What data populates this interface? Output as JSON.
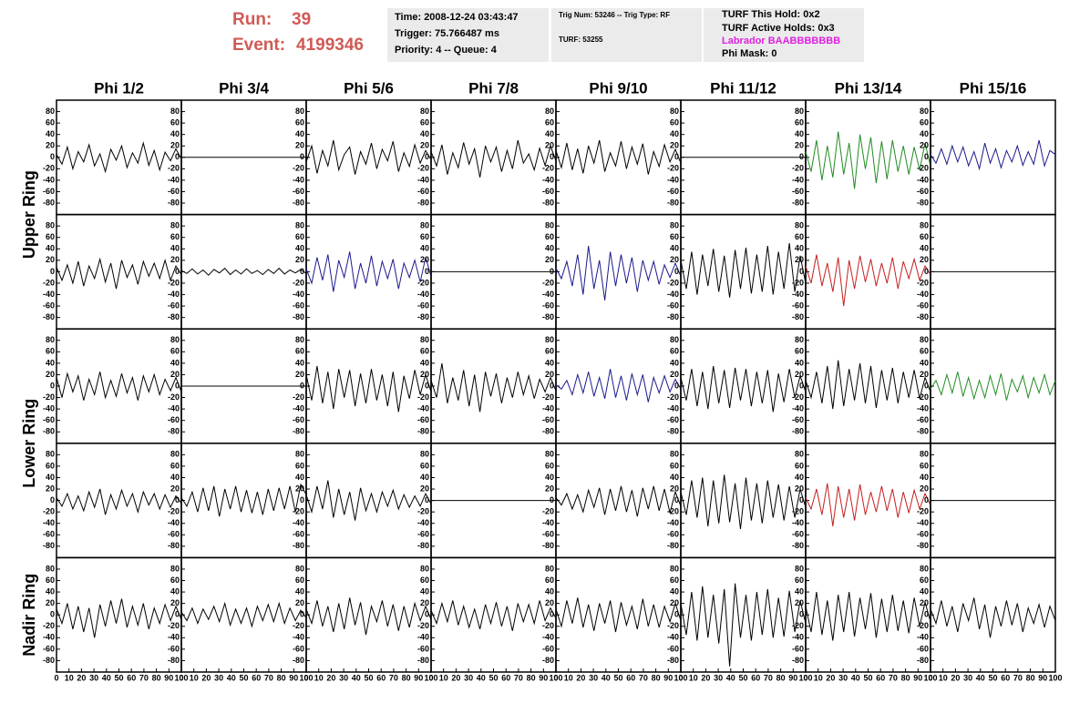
{
  "header": {
    "run_label": "Run:",
    "run": "39",
    "event_label": "Event:",
    "event": "4199346"
  },
  "info": [
    [
      "Time: 2008-12-24 03:43:47",
      "Trigger: 75.766487 ms",
      "Priority: 4 -- Queue: 4"
    ],
    [
      "Trig Num: 53246 -- Trig Type: RF",
      "TURF: 53255"
    ],
    [
      "TURF This Hold: 0x2",
      "TURF Active Holds: 0x3",
      "Labrador BAABBBBBBB",
      "Phi Mask: 0"
    ]
  ],
  "columns": [
    "Phi 1/2",
    "Phi 3/4",
    "Phi 5/6",
    "Phi 7/8",
    "Phi 9/10",
    "Phi 11/12",
    "Phi 13/14",
    "Phi 15/16"
  ],
  "rings": [
    "Upper Ring",
    "Lower Ring",
    "Nadir Ring"
  ],
  "axes": {
    "xlim": [
      0,
      100
    ],
    "ylim": [
      -100,
      100
    ],
    "xticks": [
      0,
      10,
      20,
      30,
      40,
      50,
      60,
      70,
      80,
      90,
      100
    ],
    "yticks": [
      -80,
      -60,
      -40,
      -20,
      0,
      20,
      40,
      60,
      80
    ]
  },
  "panels": [
    [
      {
        "color": "#000000",
        "values": [
          5,
          -12,
          18,
          -20,
          10,
          -8,
          22,
          -15,
          6,
          -25,
          14,
          -5,
          20,
          -18,
          8,
          -10,
          25,
          -14,
          12,
          -22,
          9,
          -6,
          15,
          -3
        ]
      },
      {
        "color": "#000000",
        "values": [
          0,
          0
        ]
      },
      {
        "color": "#000000",
        "values": [
          -8,
          20,
          -28,
          12,
          -15,
          30,
          -22,
          5,
          18,
          -30,
          10,
          -12,
          25,
          -20,
          14,
          -6,
          28,
          -25,
          8,
          -16,
          22,
          -10,
          12,
          -4
        ]
      },
      {
        "color": "#000000",
        "values": [
          10,
          -15,
          22,
          -30,
          8,
          -18,
          26,
          -12,
          15,
          -35,
          20,
          -8,
          18,
          -25,
          12,
          -20,
          30,
          -10,
          6,
          -22,
          16,
          -14,
          20,
          -6
        ]
      },
      {
        "color": "#000000",
        "values": [
          12,
          -18,
          25,
          -22,
          15,
          -28,
          20,
          -10,
          30,
          -25,
          8,
          -15,
          28,
          -20,
          18,
          -12,
          24,
          -30,
          10,
          -16,
          22,
          -8,
          14,
          -10
        ]
      },
      {
        "color": "#000000",
        "values": [
          0,
          0
        ]
      },
      {
        "color": "#228b22",
        "values": [
          10,
          -25,
          30,
          -40,
          20,
          -35,
          45,
          -30,
          25,
          -55,
          40,
          -20,
          35,
          -45,
          28,
          -38,
          30,
          -25,
          20,
          -30,
          18,
          -22,
          25,
          -15
        ]
      },
      {
        "color": "#1a1a8c",
        "values": [
          5,
          -10,
          15,
          -12,
          20,
          -8,
          18,
          -15,
          10,
          -20,
          25,
          -10,
          15,
          -18,
          12,
          -8,
          20,
          -14,
          10,
          -12,
          30,
          -15,
          12,
          5
        ]
      }
    ],
    [
      {
        "color": "#000000",
        "values": [
          8,
          -15,
          12,
          -20,
          18,
          -25,
          10,
          -12,
          22,
          -18,
          15,
          -30,
          20,
          -10,
          12,
          -22,
          18,
          -8,
          15,
          -12,
          20,
          -15,
          10,
          -5
        ]
      },
      {
        "color": "#000000",
        "values": [
          2,
          -3,
          5,
          -4,
          3,
          -6,
          4,
          -2,
          6,
          -5,
          3,
          -4,
          5,
          -3,
          2,
          -5,
          4,
          -3,
          6,
          -4,
          3,
          -2,
          4,
          -3
        ]
      },
      {
        "color": "#1a1a8c",
        "values": [
          5,
          -20,
          25,
          -15,
          30,
          -35,
          20,
          -10,
          35,
          -30,
          15,
          -20,
          28,
          -25,
          18,
          -12,
          22,
          -30,
          15,
          -10,
          20,
          -18,
          25,
          -8
        ]
      },
      {
        "color": "#000000",
        "values": [
          0,
          0
        ]
      },
      {
        "color": "#1a1a8c",
        "values": [
          6,
          -12,
          18,
          -25,
          30,
          -40,
          45,
          -30,
          20,
          -50,
          35,
          -25,
          30,
          -20,
          25,
          -35,
          20,
          -15,
          18,
          -22,
          12,
          -10,
          15,
          -8
        ]
      },
      {
        "color": "#000000",
        "values": [
          20,
          -30,
          35,
          -40,
          30,
          -25,
          40,
          -35,
          28,
          -45,
          38,
          -30,
          42,
          -38,
          30,
          -35,
          45,
          -40,
          35,
          -30,
          50,
          -35,
          28,
          -20
        ]
      },
      {
        "color": "#c41e1e",
        "values": [
          10,
          -20,
          30,
          -25,
          15,
          -35,
          25,
          -60,
          20,
          -30,
          28,
          -18,
          22,
          -25,
          15,
          -20,
          25,
          -30,
          18,
          -12,
          22,
          -15,
          10,
          -5
        ]
      },
      {
        "color": "#000000",
        "values": [
          0,
          0
        ]
      }
    ],
    [
      {
        "color": "#000000",
        "values": [
          15,
          -20,
          22,
          -10,
          18,
          -25,
          12,
          -15,
          25,
          -20,
          10,
          -18,
          22,
          -12,
          15,
          -25,
          18,
          -10,
          20,
          -15,
          12,
          -8,
          15,
          -10
        ]
      },
      {
        "color": "#000000",
        "values": [
          0,
          0
        ]
      },
      {
        "color": "#000000",
        "values": [
          20,
          -25,
          35,
          -30,
          25,
          -40,
          30,
          -20,
          28,
          -35,
          22,
          -30,
          30,
          -25,
          20,
          -35,
          25,
          -45,
          18,
          -22,
          28,
          -15,
          20,
          -10
        ]
      },
      {
        "color": "#000000",
        "values": [
          10,
          -20,
          40,
          -30,
          15,
          -25,
          28,
          -35,
          20,
          -45,
          25,
          -18,
          22,
          -30,
          15,
          -20,
          25,
          -15,
          18,
          -22,
          12,
          -10,
          15,
          -8
        ]
      },
      {
        "color": "#1a1a8c",
        "values": [
          2,
          -5,
          10,
          -15,
          20,
          -12,
          25,
          -18,
          15,
          -22,
          30,
          -20,
          18,
          -25,
          22,
          -15,
          20,
          -28,
          15,
          -12,
          18,
          -10,
          12,
          -5
        ]
      },
      {
        "color": "#000000",
        "values": [
          15,
          -25,
          30,
          -35,
          25,
          -40,
          35,
          -30,
          28,
          -38,
          32,
          -25,
          30,
          -35,
          25,
          -30,
          28,
          -45,
          22,
          -28,
          30,
          -20,
          18,
          -10
        ]
      },
      {
        "color": "#000000",
        "values": [
          10,
          -20,
          25,
          -30,
          35,
          -40,
          45,
          -35,
          30,
          -25,
          40,
          -30,
          35,
          -38,
          28,
          -25,
          32,
          -30,
          25,
          -20,
          28,
          -22,
          15,
          -10
        ]
      },
      {
        "color": "#228b22",
        "values": [
          -5,
          10,
          -15,
          20,
          -12,
          25,
          -18,
          15,
          -22,
          10,
          -20,
          18,
          -15,
          22,
          -25,
          12,
          -10,
          18,
          -20,
          15,
          -12,
          20,
          -15,
          10
        ]
      }
    ],
    [
      {
        "color": "#000000",
        "values": [
          5,
          -10,
          12,
          -15,
          8,
          -18,
          15,
          -12,
          20,
          -25,
          10,
          -15,
          18,
          -10,
          12,
          -20,
          15,
          -8,
          12,
          -15,
          10,
          -12,
          8,
          -5
        ]
      },
      {
        "color": "#000000",
        "values": [
          5,
          -10,
          15,
          -20,
          22,
          -18,
          25,
          -28,
          20,
          -15,
          25,
          -20,
          18,
          -22,
          15,
          -25,
          20,
          -18,
          22,
          -15,
          25,
          -20,
          28,
          10
        ]
      },
      {
        "color": "#000000",
        "values": [
          10,
          -20,
          25,
          -15,
          35,
          -30,
          20,
          -25,
          15,
          -35,
          22,
          -18,
          12,
          -20,
          15,
          -10,
          18,
          -15,
          10,
          -12,
          8,
          -10,
          12,
          -6
        ]
      },
      {
        "color": "#000000",
        "values": [
          0,
          0
        ]
      },
      {
        "color": "#000000",
        "values": [
          5,
          -8,
          12,
          -15,
          10,
          -20,
          18,
          -12,
          22,
          -25,
          20,
          -18,
          25,
          -20,
          18,
          -28,
          22,
          -15,
          25,
          -18,
          20,
          -22,
          15,
          -10
        ]
      },
      {
        "color": "#000000",
        "values": [
          15,
          -25,
          35,
          -30,
          40,
          -45,
          35,
          -40,
          45,
          -38,
          30,
          -50,
          40,
          -35,
          30,
          -40,
          35,
          -30,
          28,
          -35,
          25,
          -30,
          20,
          -12
        ]
      },
      {
        "color": "#c41e1e",
        "values": [
          5,
          -15,
          20,
          -25,
          30,
          -45,
          25,
          -30,
          20,
          -35,
          28,
          -25,
          15,
          -20,
          25,
          -18,
          20,
          -30,
          15,
          -22,
          18,
          -15,
          12,
          -8
        ]
      },
      {
        "color": "#000000",
        "values": [
          0,
          0
        ]
      }
    ],
    [
      {
        "color": "#000000",
        "values": [
          10,
          -15,
          20,
          -25,
          15,
          -30,
          12,
          -40,
          18,
          -20,
          25,
          -15,
          28,
          -22,
          15,
          -18,
          20,
          -25,
          12,
          -15,
          18,
          -10,
          15,
          -8
        ]
      },
      {
        "color": "#000000",
        "values": [
          5,
          -10,
          12,
          -15,
          10,
          -8,
          15,
          -12,
          20,
          -18,
          10,
          -15,
          12,
          -20,
          15,
          -10,
          18,
          -12,
          20,
          -15,
          12,
          -10,
          8,
          -5
        ]
      },
      {
        "color": "#000000",
        "values": [
          10,
          -15,
          25,
          -20,
          15,
          -30,
          20,
          -25,
          30,
          -18,
          22,
          -35,
          15,
          -12,
          25,
          -20,
          18,
          -28,
          15,
          -22,
          20,
          -10,
          15,
          -8
        ]
      },
      {
        "color": "#000000",
        "values": [
          8,
          -15,
          20,
          -12,
          25,
          -18,
          15,
          -22,
          10,
          -25,
          18,
          -15,
          22,
          -20,
          15,
          -28,
          20,
          -12,
          18,
          -15,
          25,
          -10,
          12,
          -6
        ]
      },
      {
        "color": "#000000",
        "values": [
          10,
          -20,
          25,
          -15,
          30,
          -22,
          18,
          -28,
          20,
          -15,
          25,
          -30,
          22,
          -18,
          15,
          -25,
          28,
          -20,
          18,
          -22,
          15,
          -12,
          20,
          -10
        ]
      },
      {
        "color": "#000000",
        "values": [
          20,
          -35,
          40,
          -45,
          50,
          -40,
          35,
          -50,
          45,
          -90,
          55,
          -40,
          35,
          -45,
          40,
          -35,
          45,
          -40,
          30,
          -38,
          42,
          -30,
          25,
          -15
        ]
      },
      {
        "color": "#000000",
        "values": [
          15,
          -30,
          40,
          -35,
          25,
          -45,
          35,
          -30,
          40,
          -38,
          30,
          -25,
          38,
          -40,
          28,
          -30,
          35,
          -28,
          25,
          -32,
          30,
          -20,
          22,
          -12
        ]
      },
      {
        "color": "#000000",
        "values": [
          10,
          -15,
          25,
          -20,
          15,
          -30,
          20,
          -10,
          30,
          -25,
          18,
          -40,
          15,
          -20,
          25,
          -18,
          20,
          -30,
          12,
          -15,
          18,
          -22,
          15,
          -10
        ]
      }
    ]
  ]
}
